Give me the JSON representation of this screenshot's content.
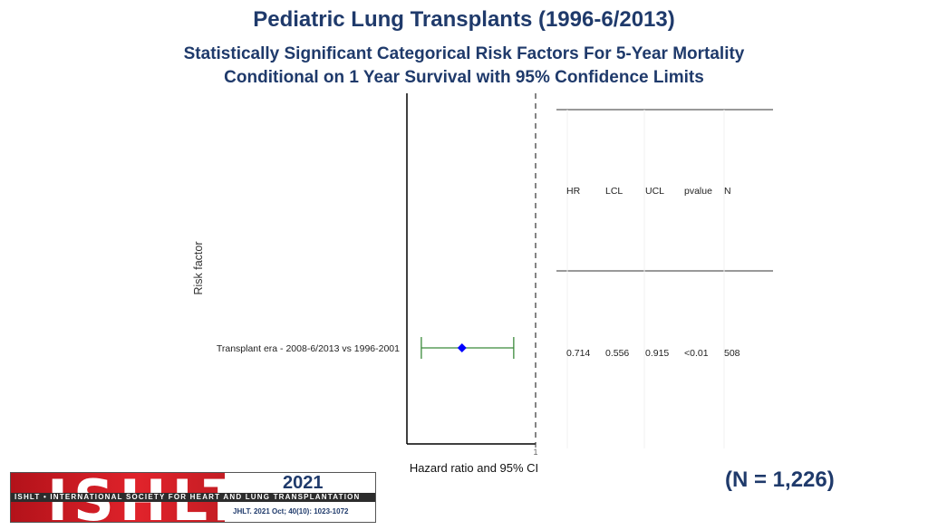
{
  "header": {
    "title": "Pediatric Lung Transplants (1996-6/2013)",
    "subtitle_line1": "Statistically Significant Categorical Risk Factors For 5-Year Mortality",
    "subtitle_line2": "Conditional on 1 Year Survival with 95% Confidence Limits"
  },
  "chart_data": {
    "type": "forest",
    "xlabel": "Hazard ratio and 95% CI",
    "ylabel": "Risk factor",
    "reference_line": 1,
    "x_tick_labels": [
      "1"
    ],
    "xlim": [
      0.5,
      1.0
    ],
    "table_headers": [
      "HR",
      "LCL",
      "UCL",
      "pvalue",
      "N"
    ],
    "rows": [
      {
        "label": "Transplant era - 2008-6/2013 vs 1996-2001",
        "hr": 0.714,
        "lcl": 0.556,
        "ucl": 0.915,
        "hr_text": "0.714",
        "lcl_text": "0.556",
        "ucl_text": "0.915",
        "pvalue": "<0.01",
        "n": "508"
      }
    ],
    "colors": {
      "point": "#0000ff",
      "ci": "#3a8a3a",
      "axis": "#000000"
    }
  },
  "footer": {
    "n_note": "(N = 1,226)",
    "logo_text": "ISHLT",
    "logo_band": "ISHLT • INTERNATIONAL SOCIETY FOR HEART AND LUNG TRANSPLANTATION",
    "year": "2021",
    "reference": "JHLT. 2021 Oct; 40(10): 1023-1072"
  }
}
